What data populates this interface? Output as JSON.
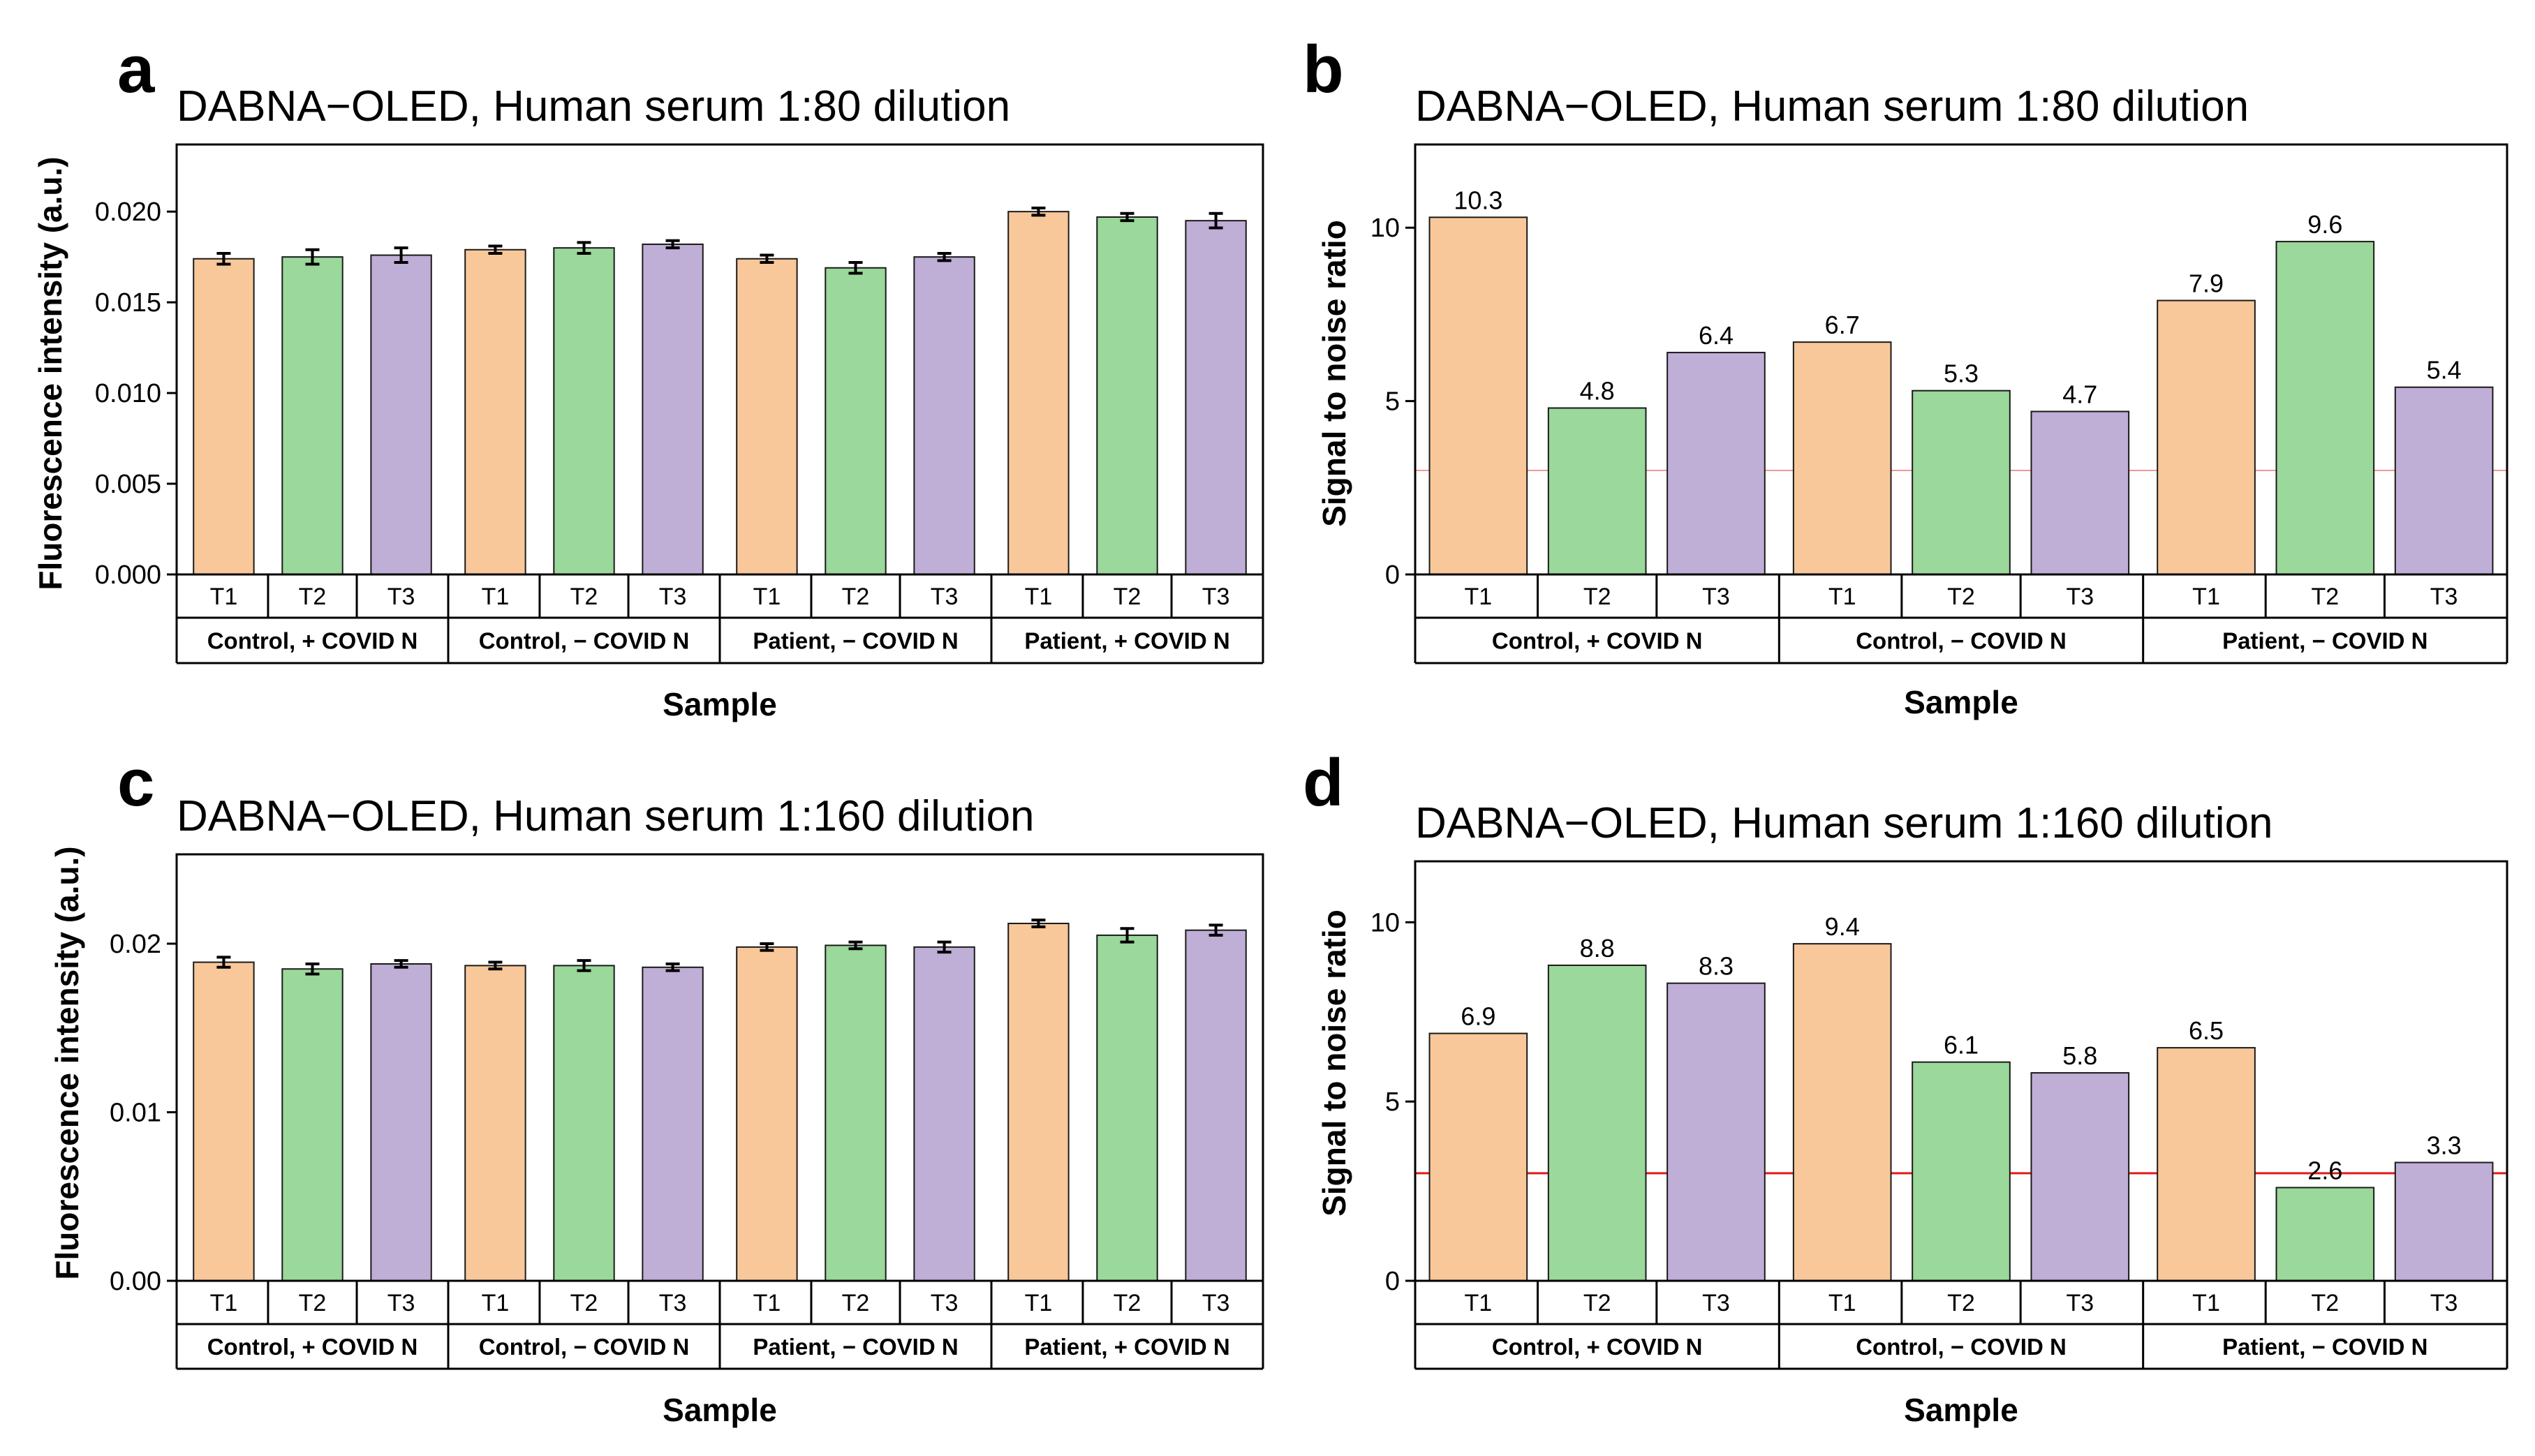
{
  "colors": {
    "T1": "#f9c89a",
    "T2": "#9bd89b",
    "T3": "#bfaed6",
    "threshold": "#e21a1a"
  },
  "chart_data": [
    {
      "panel": "a",
      "type": "bar",
      "title": "DABNA−OLED, Human serum 1:80 dilution",
      "xlabel": "Sample",
      "ylabel": "Fluorescence intensity (a.u.)",
      "ylim": [
        0,
        0.0237
      ],
      "yticks": [
        0,
        0.005,
        0.01,
        0.015,
        0.02
      ],
      "ytick_labels": [
        "0.000",
        "0.005",
        "0.010",
        "0.015",
        "0.020"
      ],
      "groups": [
        "Control, + COVID N",
        "Control, − COVID N",
        "Patient, − COVID N",
        "Patient, + COVID N"
      ],
      "categories": [
        "T1",
        "T2",
        "T3"
      ],
      "values": [
        [
          0.0174,
          0.0175,
          0.0176
        ],
        [
          0.0179,
          0.018,
          0.0182
        ],
        [
          0.0174,
          0.0169,
          0.0175
        ],
        [
          0.02,
          0.0197,
          0.0195
        ]
      ],
      "errors": [
        [
          0.0003,
          0.0004,
          0.0004
        ],
        [
          0.0002,
          0.0003,
          0.0002
        ],
        [
          0.0002,
          0.0003,
          0.0002
        ],
        [
          0.0002,
          0.0002,
          0.0004
        ]
      ]
    },
    {
      "panel": "b",
      "type": "bar",
      "title": "DABNA−OLED, Human serum 1:80 dilution",
      "xlabel": "Sample",
      "ylabel": "Signal to noise ratio",
      "ylim": [
        0,
        12.4
      ],
      "yticks": [
        0,
        5,
        10
      ],
      "ytick_labels": [
        "0",
        "5",
        "10"
      ],
      "threshold": 3,
      "groups": [
        "Control, + COVID N",
        "Control, − COVID N",
        "Patient, − COVID N"
      ],
      "categories": [
        "T1",
        "T2",
        "T3"
      ],
      "values": [
        [
          10.3,
          4.8,
          6.4
        ],
        [
          6.7,
          5.3,
          4.7
        ],
        [
          7.9,
          9.6,
          5.4
        ]
      ],
      "data_labels": [
        [
          "10.3",
          "4.8",
          "6.4"
        ],
        [
          "6.7",
          "5.3",
          "4.7"
        ],
        [
          "7.9",
          "9.6",
          "5.4"
        ]
      ]
    },
    {
      "panel": "c",
      "type": "bar",
      "title": "DABNA−OLED, Human serum 1:160 dilution",
      "xlabel": "Sample",
      "ylabel": "Fluorescence intensity (a.u.)",
      "ylim": [
        0,
        0.0253
      ],
      "yticks": [
        0,
        0.01,
        0.02
      ],
      "ytick_labels": [
        "0.00",
        "0.01",
        "0.02"
      ],
      "groups": [
        "Control, + COVID N",
        "Control, − COVID N",
        "Patient, − COVID N",
        "Patient, + COVID N"
      ],
      "categories": [
        "T1",
        "T2",
        "T3"
      ],
      "values": [
        [
          0.0189,
          0.0185,
          0.0188
        ],
        [
          0.0187,
          0.0187,
          0.0186
        ],
        [
          0.0198,
          0.0199,
          0.0198
        ],
        [
          0.0212,
          0.0205,
          0.0208
        ]
      ],
      "errors": [
        [
          0.0003,
          0.0003,
          0.0002
        ],
        [
          0.0002,
          0.0003,
          0.0002
        ],
        [
          0.0002,
          0.0002,
          0.0003
        ],
        [
          0.0002,
          0.0004,
          0.0003
        ]
      ]
    },
    {
      "panel": "d",
      "type": "bar",
      "title": "DABNA−OLED, Human serum 1:160 dilution",
      "xlabel": "Sample",
      "ylabel": "Signal to noise ratio",
      "ylim": [
        0,
        11.7
      ],
      "yticks": [
        0,
        5,
        10
      ],
      "ytick_labels": [
        "0",
        "5",
        "10"
      ],
      "threshold": 3,
      "groups": [
        "Control, + COVID N",
        "Control, − COVID N",
        "Patient, − COVID N"
      ],
      "categories": [
        "T1",
        "T2",
        "T3"
      ],
      "values": [
        [
          6.9,
          8.8,
          8.3
        ],
        [
          9.4,
          6.1,
          5.8
        ],
        [
          6.5,
          2.6,
          3.3
        ]
      ],
      "data_labels": [
        [
          "6.9",
          "8.8",
          "8.3"
        ],
        [
          "9.4",
          "6.1",
          "5.8"
        ],
        [
          "6.5",
          "2.6",
          "3.3"
        ]
      ]
    }
  ]
}
